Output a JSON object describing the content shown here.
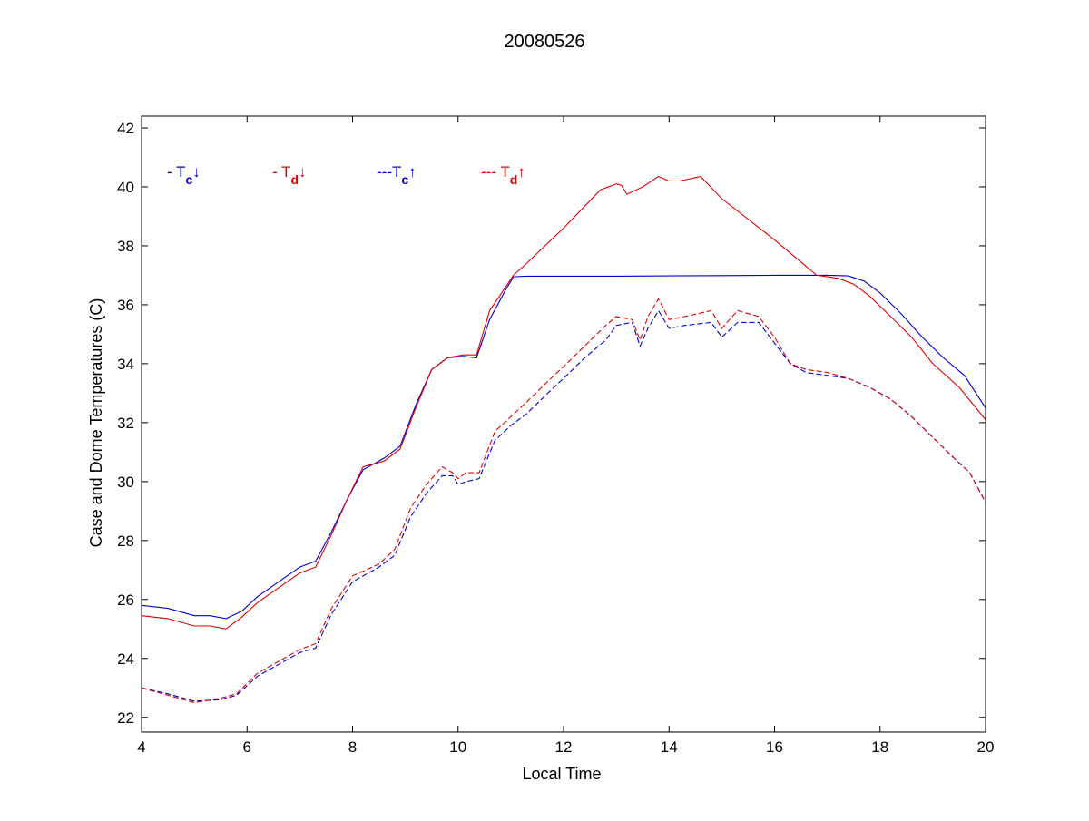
{
  "chart_data": {
    "type": "line",
    "title": "20080526",
    "xlabel": "Local Time",
    "ylabel": "Case and Dome Temperatures (C)",
    "xlim": [
      4,
      20
    ],
    "ylim": [
      21.5,
      42.4
    ],
    "xticks": [
      4,
      6,
      8,
      10,
      12,
      14,
      16,
      18,
      20
    ],
    "yticks": [
      22,
      24,
      26,
      28,
      30,
      32,
      34,
      36,
      38,
      40,
      42
    ],
    "grid": false,
    "legend_placement": "top-left (inside plot area)",
    "legend": [
      {
        "prefix": "- T",
        "sub": "c",
        "arrow": "↓",
        "color": "#0000cc",
        "series_index": 0
      },
      {
        "prefix": "- T",
        "sub": "d",
        "arrow": "↓",
        "color": "#e00000",
        "series_index": 1
      },
      {
        "prefix": "---T",
        "sub": "c",
        "arrow": "↑",
        "color": "#0000cc",
        "series_index": 2
      },
      {
        "prefix": "--- T",
        "sub": "d",
        "arrow": "↑",
        "color": "#e00000",
        "series_index": 3
      }
    ],
    "series": [
      {
        "color": "#0000cc",
        "dashed": false,
        "x": [
          4.0,
          4.5,
          5.0,
          5.3,
          5.6,
          5.9,
          6.2,
          6.6,
          7.0,
          7.3,
          7.6,
          7.9,
          8.2,
          8.6,
          8.9,
          9.2,
          9.5,
          9.8,
          10.1,
          10.35,
          10.6,
          10.9,
          11.05,
          11.3,
          12.0,
          13.0,
          14.0,
          15.0,
          16.0,
          17.0,
          17.4,
          17.7,
          18.0,
          18.4,
          18.8,
          19.2,
          19.6,
          20.0
        ],
        "y": [
          25.8,
          25.7,
          25.45,
          25.45,
          25.35,
          25.6,
          26.1,
          26.6,
          27.1,
          27.3,
          28.3,
          29.4,
          30.4,
          30.8,
          31.2,
          32.6,
          33.8,
          34.2,
          34.25,
          34.2,
          35.5,
          36.5,
          36.95,
          36.97,
          36.97,
          36.97,
          36.98,
          36.99,
          37.0,
          37.0,
          36.98,
          36.8,
          36.4,
          35.7,
          34.9,
          34.2,
          33.6,
          32.5
        ]
      },
      {
        "color": "#e00000",
        "dashed": false,
        "x": [
          4.0,
          4.5,
          5.0,
          5.3,
          5.6,
          5.9,
          6.2,
          6.6,
          7.0,
          7.3,
          7.6,
          7.9,
          8.2,
          8.6,
          8.9,
          9.2,
          9.5,
          9.8,
          10.1,
          10.35,
          10.6,
          10.9,
          11.05,
          11.3,
          11.5,
          12.0,
          12.7,
          13.0,
          13.1,
          13.2,
          13.5,
          13.8,
          14.0,
          14.2,
          14.6,
          15.0,
          16.0,
          16.8,
          17.2,
          17.5,
          17.8,
          18.2,
          18.6,
          19.0,
          19.5,
          20.0
        ],
        "y": [
          25.45,
          25.35,
          25.1,
          25.1,
          25.0,
          25.4,
          25.9,
          26.4,
          26.9,
          27.1,
          28.2,
          29.4,
          30.5,
          30.7,
          31.1,
          32.5,
          33.8,
          34.2,
          34.3,
          34.3,
          35.8,
          36.6,
          37.0,
          37.4,
          37.75,
          38.6,
          39.9,
          40.1,
          40.05,
          39.75,
          40.0,
          40.35,
          40.2,
          40.2,
          40.35,
          39.6,
          38.2,
          37.0,
          36.9,
          36.7,
          36.3,
          35.6,
          34.9,
          34.0,
          33.2,
          32.1
        ]
      },
      {
        "color": "#0000cc",
        "dashed": true,
        "x": [
          4.0,
          4.5,
          5.0,
          5.5,
          5.8,
          6.2,
          6.6,
          7.0,
          7.3,
          7.6,
          8.0,
          8.5,
          8.8,
          9.1,
          9.4,
          9.7,
          9.9,
          10.0,
          10.15,
          10.4,
          10.7,
          11.0,
          11.3,
          11.7,
          12.0,
          12.4,
          12.8,
          13.0,
          13.3,
          13.45,
          13.6,
          13.8,
          14.0,
          14.3,
          14.8,
          15.0,
          15.3,
          15.7,
          16.0,
          16.3,
          16.6,
          17.0,
          17.4,
          17.8,
          18.2,
          18.6,
          19.0,
          19.4,
          19.7,
          20.0
        ],
        "y": [
          23.0,
          22.8,
          22.55,
          22.6,
          22.75,
          23.4,
          23.8,
          24.2,
          24.35,
          25.5,
          26.6,
          27.1,
          27.5,
          28.8,
          29.6,
          30.2,
          30.2,
          29.9,
          30.0,
          30.1,
          31.4,
          31.9,
          32.3,
          33.0,
          33.5,
          34.2,
          34.8,
          35.3,
          35.4,
          34.6,
          35.2,
          35.8,
          35.2,
          35.3,
          35.4,
          34.9,
          35.4,
          35.4,
          34.7,
          34.0,
          33.7,
          33.6,
          33.5,
          33.2,
          32.8,
          32.2,
          31.5,
          30.8,
          30.3,
          29.3
        ]
      },
      {
        "color": "#e00000",
        "dashed": true,
        "x": [
          4.0,
          4.5,
          5.0,
          5.5,
          5.8,
          6.2,
          6.6,
          7.0,
          7.3,
          7.6,
          8.0,
          8.5,
          8.8,
          9.1,
          9.4,
          9.7,
          9.9,
          10.0,
          10.15,
          10.4,
          10.7,
          11.0,
          11.3,
          11.7,
          12.0,
          12.4,
          12.8,
          13.0,
          13.3,
          13.45,
          13.6,
          13.8,
          14.0,
          14.3,
          14.8,
          15.0,
          15.3,
          15.7,
          16.0,
          16.3,
          16.6,
          17.0,
          17.4,
          17.8,
          18.2,
          18.6,
          19.0,
          19.4,
          19.7,
          20.0
        ],
        "y": [
          23.0,
          22.75,
          22.5,
          22.65,
          22.8,
          23.5,
          23.9,
          24.3,
          24.5,
          25.7,
          26.8,
          27.2,
          27.7,
          29.1,
          29.9,
          30.5,
          30.3,
          30.1,
          30.3,
          30.3,
          31.7,
          32.2,
          32.7,
          33.4,
          33.9,
          34.6,
          35.3,
          35.6,
          35.5,
          34.8,
          35.6,
          36.2,
          35.5,
          35.6,
          35.8,
          35.2,
          35.8,
          35.6,
          34.9,
          34.0,
          33.8,
          33.7,
          33.5,
          33.2,
          32.8,
          32.2,
          31.5,
          30.8,
          30.3,
          29.3
        ]
      }
    ]
  }
}
